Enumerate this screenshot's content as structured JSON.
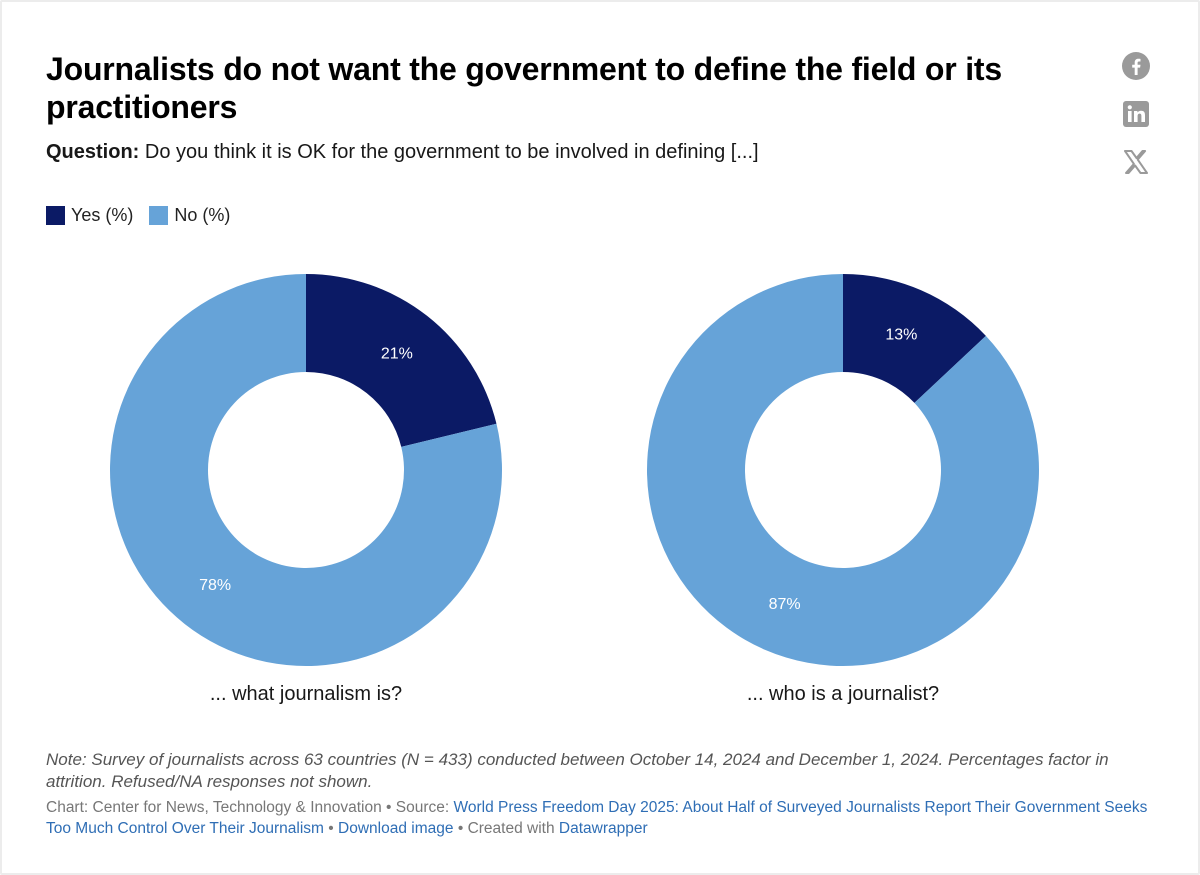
{
  "header": {
    "title": "Journalists do not want the government to define the field or its practitioners",
    "question_label": "Question:",
    "question_text": "Do you think it is OK for the government to be involved in defining [...]"
  },
  "legend": [
    {
      "label": "Yes (%)",
      "color": "#0b1a65"
    },
    {
      "label": "No (%)",
      "color": "#66a3d8"
    }
  ],
  "social": [
    "facebook-icon",
    "linkedin-icon",
    "x-icon"
  ],
  "chart_data": [
    {
      "type": "pie",
      "donut": true,
      "title": "... what journalism is?",
      "series": [
        {
          "name": "Yes (%)",
          "value": 21,
          "label": "21%"
        },
        {
          "name": "No (%)",
          "value": 78,
          "label": "78%"
        }
      ]
    },
    {
      "type": "pie",
      "donut": true,
      "title": "... who is a journalist?",
      "series": [
        {
          "name": "Yes (%)",
          "value": 13,
          "label": "13%"
        },
        {
          "name": "No (%)",
          "value": 87,
          "label": "87%"
        }
      ]
    }
  ],
  "note": "Note: Survey of journalists across 63 countries (N = 433) conducted between October 14, 2024 and December 1, 2024. Percentages factor in attrition. Refused/NA responses not shown.",
  "footer": {
    "chart_credit": "Chart: Center for News, Technology & Innovation",
    "source_prefix": "Source:",
    "source_link": "World Press Freedom Day 2025: About Half of Surveyed Journalists Report Their Government Seeks Too Much Control Over Their Journalism",
    "download_link": "Download image",
    "created_with": "Created with",
    "datawrapper_link": "Datawrapper",
    "separator": "•"
  }
}
